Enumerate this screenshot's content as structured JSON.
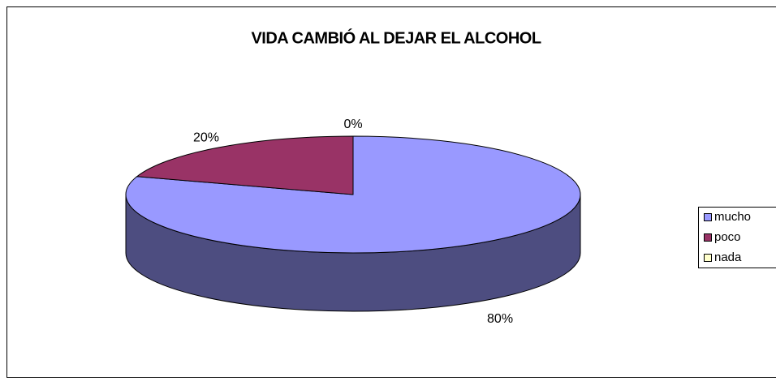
{
  "chart_data": {
    "type": "pie",
    "title": "VIDA CAMBIÓ AL DEJAR EL ALCOHOL",
    "categories": [
      "mucho",
      "poco",
      "nada"
    ],
    "values": [
      80,
      20,
      0
    ],
    "value_labels": [
      "80%",
      "20%",
      "0%"
    ],
    "colors": [
      "#9999ff",
      "#993366",
      "#ffffcc"
    ],
    "legend": "right"
  }
}
